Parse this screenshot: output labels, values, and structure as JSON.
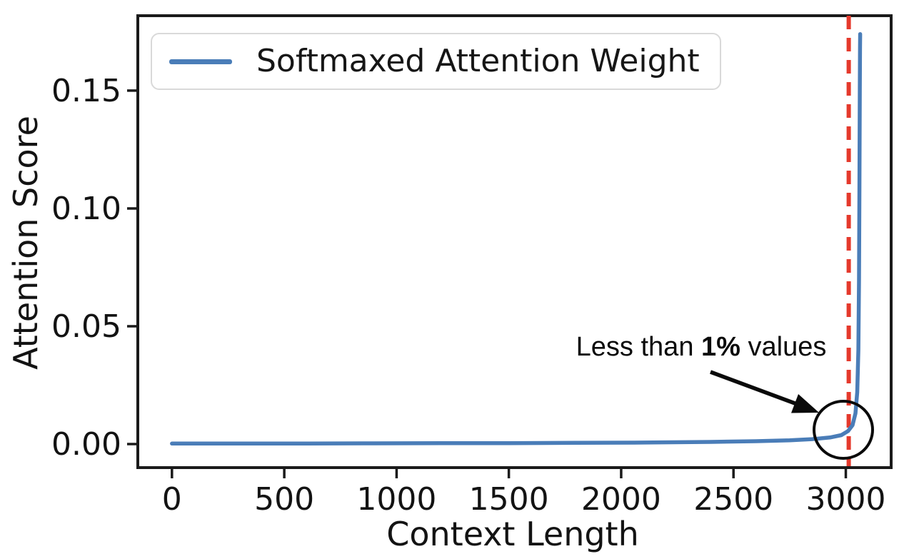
{
  "chart_data": {
    "type": "line",
    "title": "",
    "xlabel": "Context Length",
    "ylabel": "Attention Score",
    "xlim": [
      -152,
      3202
    ],
    "ylim": [
      -0.01,
      0.1818
    ],
    "xticks": [
      0,
      500,
      1000,
      1500,
      2000,
      2500,
      3000
    ],
    "xtick_labels": [
      "0",
      "500",
      "1000",
      "1500",
      "2000",
      "2500",
      "3000"
    ],
    "ytick_values": [
      0.0,
      0.05,
      0.1,
      0.15
    ],
    "ytick_labels": [
      "0.00",
      "0.05",
      "0.10",
      "0.15"
    ],
    "grid": false,
    "legend_position": "upper left",
    "series": [
      {
        "name": "Softmaxed Attention Weight",
        "color": "#4a7db8",
        "style": "solid",
        "points": [
          [
            0,
            0.0002
          ],
          [
            300,
            0.0002
          ],
          [
            600,
            0.00025
          ],
          [
            900,
            0.0003
          ],
          [
            1200,
            0.00035
          ],
          [
            1500,
            0.0004
          ],
          [
            1800,
            0.0005
          ],
          [
            2100,
            0.00065
          ],
          [
            2400,
            0.0009
          ],
          [
            2600,
            0.0012
          ],
          [
            2750,
            0.0016
          ],
          [
            2850,
            0.0021
          ],
          [
            2930,
            0.0028
          ],
          [
            2980,
            0.0038
          ],
          [
            3010,
            0.0055
          ],
          [
            3030,
            0.008
          ],
          [
            3043,
            0.013
          ],
          [
            3051,
            0.022
          ],
          [
            3056,
            0.04
          ],
          [
            3059,
            0.07
          ],
          [
            3061,
            0.11
          ],
          [
            3062.5,
            0.15
          ],
          [
            3063.5,
            0.168
          ],
          [
            3064,
            0.174
          ]
        ]
      }
    ],
    "vline": {
      "x": 3013,
      "color": "#e5392c",
      "style": "dashed"
    },
    "annotation": {
      "prefix": "Less than ",
      "bold": "1%",
      "suffix": " values",
      "target": {
        "x": 3010,
        "y": 0.004
      }
    }
  },
  "colors": {
    "line": "#4a7db8",
    "vline": "#e5392c",
    "spine": "#1a1a1a",
    "annotation_ink": "#0a0a0a",
    "legend_border": "#d9d9d9"
  }
}
